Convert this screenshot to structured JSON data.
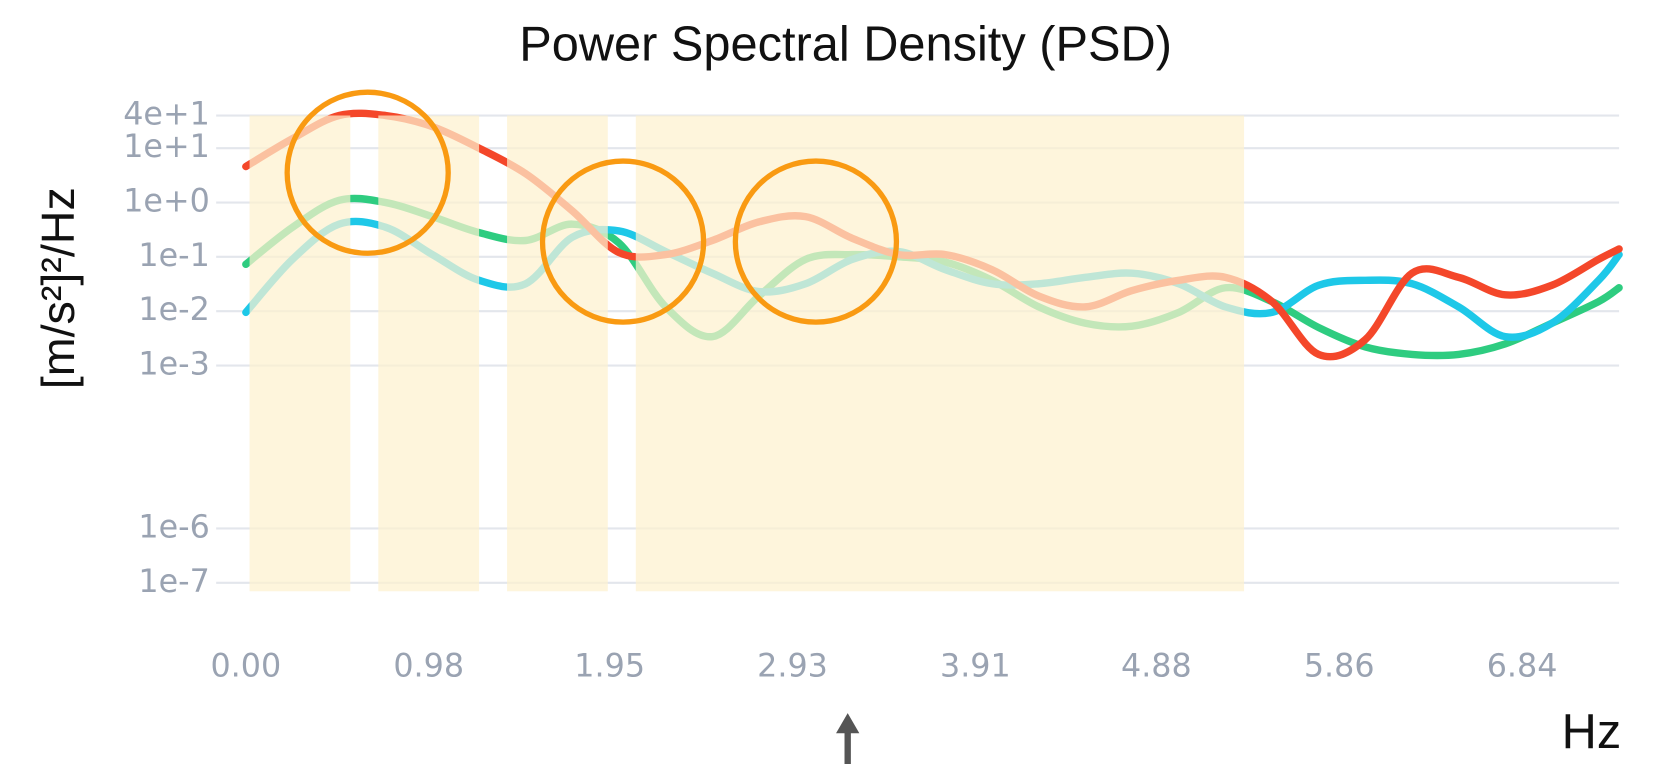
{
  "chart_data": {
    "type": "line",
    "title": "Power Spectral Density (PSD)",
    "y_label": "[m/s²]²/Hz",
    "x_label": "Hz",
    "log_y": true,
    "grid": true,
    "x": [
      0,
      0.25,
      0.5,
      0.75,
      1.0,
      1.25,
      1.5,
      1.75,
      2.0,
      2.25,
      2.5,
      2.75,
      3.0,
      3.25,
      3.5,
      3.75,
      4.0,
      4.25,
      4.5,
      4.75,
      5.0,
      5.25,
      5.5,
      5.75,
      6.0,
      6.25,
      6.5,
      6.75,
      7.0,
      7.25,
      7.36
    ],
    "series": [
      {
        "color": "#2ecc80",
        "values": [
          0.073,
          0.35,
          1.1,
          1,
          0.55,
          0.28,
          0.2,
          0.4,
          0.18,
          0.012,
          0.0034,
          0.019,
          0.09,
          0.11,
          0.1,
          0.08,
          0.037,
          0.012,
          0.006,
          0.0053,
          0.0095,
          0.027,
          0.015,
          0.005,
          0.0022,
          0.0016,
          0.0016,
          0.0025,
          0.006,
          0.015,
          0.027
        ]
      },
      {
        "color": "#1ec8e8",
        "values": [
          0.0095,
          0.09,
          0.4,
          0.35,
          0.11,
          0.037,
          0.032,
          0.23,
          0.3,
          0.125,
          0.05,
          0.023,
          0.032,
          0.09,
          0.125,
          0.058,
          0.032,
          0.032,
          0.042,
          0.05,
          0.032,
          0.012,
          0.0095,
          0.03,
          0.037,
          0.032,
          0.012,
          0.0034,
          0.006,
          0.037,
          0.11
        ]
      },
      {
        "color": "#f4472a",
        "values": [
          4.6,
          15,
          40,
          40,
          25,
          10,
          3.4,
          0.7,
          0.12,
          0.11,
          0.2,
          0.44,
          0.55,
          0.22,
          0.11,
          0.11,
          0.058,
          0.019,
          0.012,
          0.024,
          0.037,
          0.042,
          0.015,
          0.0016,
          0.003,
          0.05,
          0.042,
          0.02,
          0.03,
          0.09,
          0.14
        ]
      }
    ],
    "highlights": [
      [
        0.02,
        0.56
      ],
      [
        0.71,
        1.25
      ],
      [
        1.4,
        1.94
      ],
      [
        2.09,
        5.35
      ]
    ],
    "highlight_color": "#fdf1cf",
    "xlim": [
      0,
      7.36
    ],
    "ylim": [
      1e-07,
      40
    ],
    "xticks": [
      {
        "value": 0,
        "label": "0.00"
      },
      0.98,
      1.95,
      2.93,
      3.91,
      4.88,
      5.86,
      6.84
    ],
    "yticks": [
      {
        "value": 40,
        "label": "4e+1"
      },
      {
        "value": 10,
        "label": "1e+1"
      },
      {
        "value": 1,
        "label": "1e+0"
      },
      {
        "value": 0.1,
        "label": "1e-1"
      },
      {
        "value": 0.01,
        "label": "1e-2"
      },
      {
        "value": 0.001,
        "label": "1e-3"
      },
      {
        "value": 1e-06,
        "label": "1e-6"
      },
      {
        "value": 1e-07,
        "label": "1e-7"
      }
    ]
  }
}
